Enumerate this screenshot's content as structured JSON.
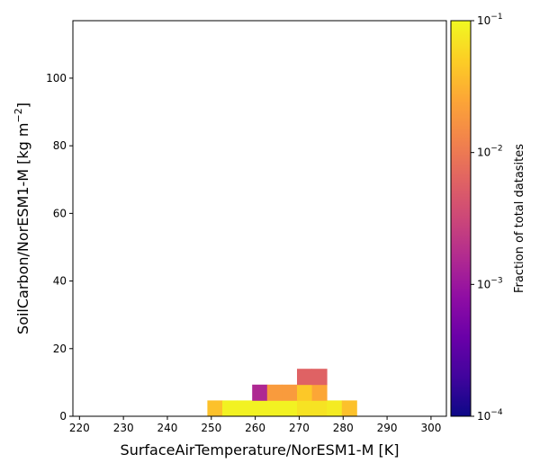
{
  "chart_data": {
    "type": "heatmap",
    "xlabel": "SurfaceAirTemperature/NorESM1-M [K]",
    "ylabel_main": "SoilCarbon/NorESM1-M [kg m",
    "ylabel_sup": "−2",
    "ylabel_end": "]",
    "xlim": [
      218.5,
      303.5
    ],
    "ylim": [
      0,
      117
    ],
    "xticks": [
      220,
      230,
      240,
      250,
      260,
      270,
      280,
      290,
      300
    ],
    "yticks": [
      0,
      20,
      40,
      60,
      80,
      100
    ],
    "colorbar": {
      "label": "Fraction of total datasites",
      "scale": "log",
      "range": [
        0.0001,
        0.1
      ],
      "colormap": "plasma",
      "ticks": [
        {
          "value": 0.1,
          "base": "10",
          "exp": "−1"
        },
        {
          "value": 0.01,
          "base": "10",
          "exp": "−2"
        },
        {
          "value": 0.001,
          "base": "10",
          "exp": "−3"
        },
        {
          "value": 0.0001,
          "base": "10",
          "exp": "−4"
        }
      ]
    },
    "bin_width_x": 3.4,
    "bin_height_y": 4.68,
    "cells": [
      {
        "x0": 249.1,
        "y0": 0,
        "value": 0.04
      },
      {
        "x0": 252.5,
        "y0": 0,
        "value": 0.09
      },
      {
        "x0": 255.9,
        "y0": 0,
        "value": 0.09
      },
      {
        "x0": 259.3,
        "y0": 0,
        "value": 0.09
      },
      {
        "x0": 262.7,
        "y0": 0,
        "value": 0.09
      },
      {
        "x0": 266.1,
        "y0": 0,
        "value": 0.09
      },
      {
        "x0": 269.5,
        "y0": 0,
        "value": 0.07
      },
      {
        "x0": 272.9,
        "y0": 0,
        "value": 0.07
      },
      {
        "x0": 276.3,
        "y0": 0,
        "value": 0.08
      },
      {
        "x0": 279.7,
        "y0": 0,
        "value": 0.04
      },
      {
        "x0": 259.3,
        "y0": 4.68,
        "value": 0.0015
      },
      {
        "x0": 262.7,
        "y0": 4.68,
        "value": 0.02
      },
      {
        "x0": 266.1,
        "y0": 4.68,
        "value": 0.02
      },
      {
        "x0": 269.5,
        "y0": 4.68,
        "value": 0.045
      },
      {
        "x0": 272.9,
        "y0": 4.68,
        "value": 0.025
      },
      {
        "x0": 269.5,
        "y0": 9.36,
        "value": 0.006
      },
      {
        "x0": 272.9,
        "y0": 9.36,
        "value": 0.006
      }
    ]
  }
}
